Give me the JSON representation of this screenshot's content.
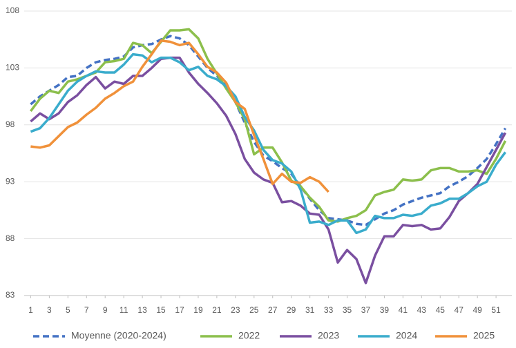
{
  "chart_data": {
    "type": "line",
    "x": [
      1,
      2,
      3,
      4,
      5,
      6,
      7,
      8,
      9,
      10,
      11,
      12,
      13,
      14,
      15,
      16,
      17,
      18,
      19,
      20,
      21,
      22,
      23,
      24,
      25,
      26,
      27,
      28,
      29,
      30,
      31,
      32,
      33,
      34,
      35,
      36,
      37,
      38,
      39,
      40,
      41,
      42,
      43,
      44,
      45,
      46,
      47,
      48,
      49,
      50,
      51,
      52
    ],
    "xlim": [
      0.3,
      52.7
    ],
    "xticks": [
      1,
      3,
      5,
      7,
      9,
      11,
      13,
      15,
      17,
      19,
      21,
      23,
      25,
      27,
      29,
      31,
      33,
      35,
      37,
      39,
      41,
      43,
      45,
      47,
      49,
      51
    ],
    "ylim": [
      83,
      108
    ],
    "yticks": [
      83,
      88,
      93,
      98,
      103,
      108
    ],
    "grid": true,
    "legend": "bottom",
    "series": [
      {
        "name": "Moyenne (2020-2024)",
        "color": "#4472c4",
        "style": "dashed",
        "values": [
          99.8,
          100.5,
          101,
          101.5,
          102.2,
          102.3,
          103,
          103.5,
          103.7,
          103.8,
          104,
          104.8,
          105,
          105.1,
          105.5,
          105.8,
          105.6,
          105,
          104,
          103,
          102.3,
          101.5,
          100,
          98.2,
          96.5,
          95.3,
          94.8,
          94.2,
          93.7,
          92.6,
          91.5,
          90.5,
          89.8,
          89.7,
          89.6,
          89.3,
          89.2,
          89.7,
          90.2,
          90.5,
          91,
          91.3,
          91.6,
          91.8,
          92,
          92.6,
          93,
          93.5,
          94.2,
          95,
          96.3,
          97.7
        ]
      },
      {
        "name": "2022",
        "color": "#8cbf4c",
        "style": "solid",
        "values": [
          99.2,
          100.3,
          101,
          100.8,
          101.8,
          102,
          102.3,
          102.6,
          103.5,
          103.6,
          103.8,
          105.2,
          105,
          104.3,
          105.3,
          106.3,
          106.3,
          106.4,
          105.6,
          103.8,
          102.5,
          101.2,
          100,
          98.5,
          95.4,
          96,
          96,
          94.7,
          93.1,
          92.6,
          91.6,
          90.8,
          89.6,
          89.5,
          89.8,
          90,
          90.5,
          91.8,
          92.1,
          92.3,
          93.2,
          93.1,
          93.2,
          94,
          94.2,
          94.2,
          93.9,
          93.9,
          94,
          93.7,
          95,
          96.6
        ]
      },
      {
        "name": "2023",
        "color": "#7a4fa0",
        "style": "solid",
        "values": [
          98.3,
          99,
          98.5,
          99,
          100,
          100.6,
          101.5,
          102.2,
          101.2,
          101.8,
          101.6,
          102.3,
          102.3,
          103,
          103.8,
          103.9,
          103.9,
          102.6,
          101.6,
          100.8,
          99.9,
          98.8,
          97.2,
          95,
          93.8,
          93.2,
          92.9,
          91.2,
          91.3,
          90.9,
          90.2,
          90.1,
          88.8,
          85.9,
          87,
          86.2,
          84.1,
          86.5,
          88.2,
          88.2,
          89.2,
          89.1,
          89.2,
          88.8,
          88.9,
          89.9,
          91.3,
          92,
          92.8,
          94.3,
          95.8,
          97.3
        ]
      },
      {
        "name": "2024",
        "color": "#3aaccc",
        "style": "solid",
        "values": [
          97.4,
          97.7,
          98.6,
          99.8,
          101,
          101.8,
          102.3,
          102.7,
          102.6,
          102.6,
          103.3,
          104.2,
          104.1,
          103.5,
          103.9,
          103.9,
          103.5,
          102.8,
          103.1,
          102.3,
          102,
          101.4,
          100.5,
          98.7,
          97.5,
          95.8,
          94.9,
          94.6,
          93.9,
          92.3,
          89.4,
          89.5,
          89.2,
          89.6,
          89.6,
          88.5,
          88.8,
          90,
          89.8,
          89.8,
          90.1,
          90,
          90.2,
          90.9,
          91.1,
          91.5,
          91.5,
          92,
          92.6,
          93,
          94.5,
          95.6
        ]
      },
      {
        "name": "2025",
        "color": "#f0913a",
        "style": "solid",
        "values": [
          96.1,
          96,
          96.2,
          97,
          97.8,
          98.2,
          98.9,
          99.5,
          100.3,
          100.8,
          101.4,
          101.8,
          103.1,
          104.2,
          105.4,
          105.3,
          105,
          105.2,
          104.2,
          103.1,
          102.6,
          101.7,
          100,
          99.4,
          97.1,
          95,
          92.8,
          93.7,
          93,
          92.9,
          93.4,
          93,
          92.1,
          null,
          null,
          null,
          null,
          null,
          null,
          null,
          null,
          null,
          null,
          null,
          null,
          null,
          null,
          null,
          null,
          null,
          null,
          null
        ]
      }
    ]
  }
}
